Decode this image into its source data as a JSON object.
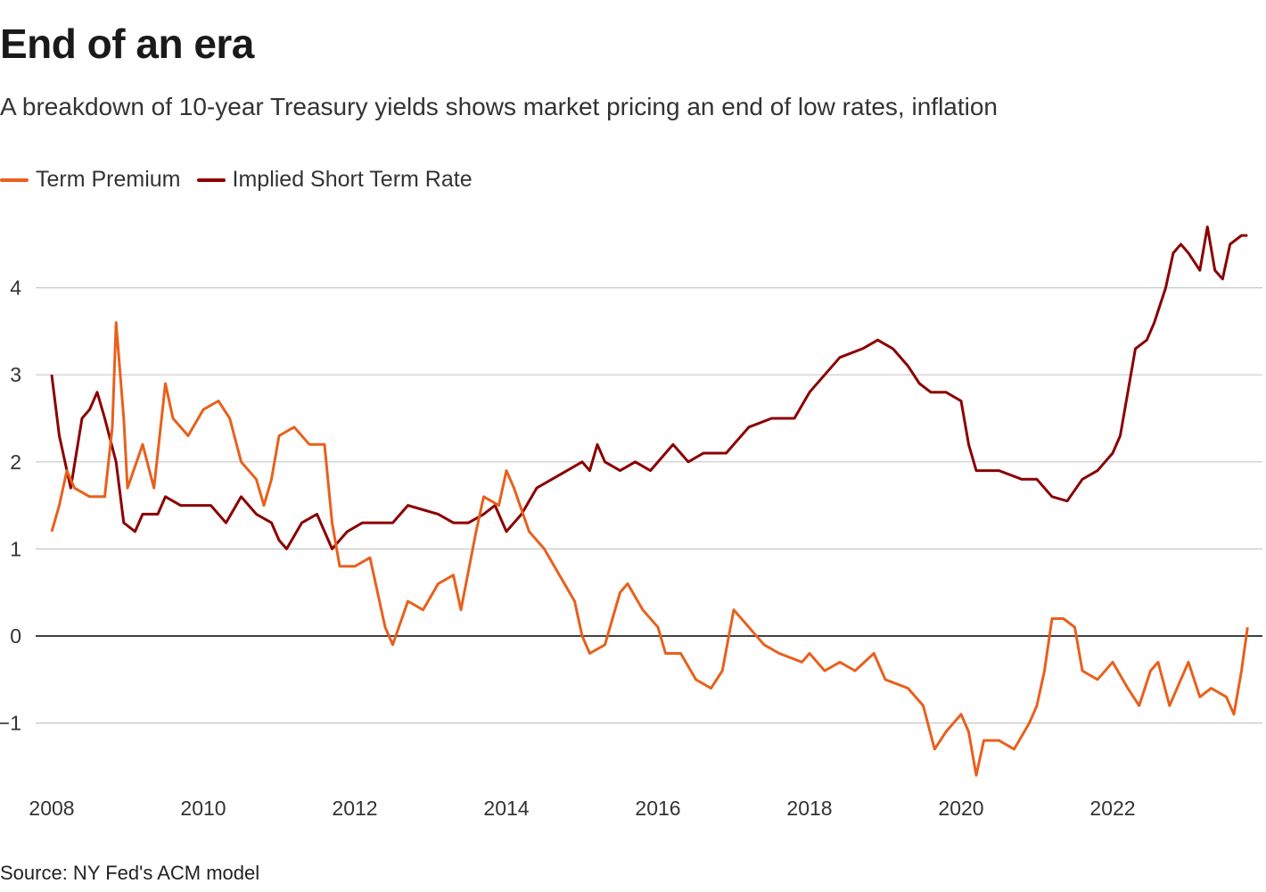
{
  "title": "End of an era",
  "subtitle": "A breakdown of 10-year Treasury yields shows market pricing an end of low rates, inflation",
  "source": "Source: NY Fed's ACM model",
  "chart_data": {
    "type": "line",
    "title": "End of an era",
    "xlabel": "",
    "ylabel": "",
    "xlim": [
      2007.95,
      2023.95
    ],
    "ylim": [
      -1.8,
      4.9
    ],
    "x_ticks": [
      "2008",
      "2010",
      "2012",
      "2014",
      "2016",
      "2018",
      "2020",
      "2022"
    ],
    "y_ticks": [
      "4",
      "3",
      "2",
      "1",
      "0",
      "−1"
    ],
    "grid": true,
    "legend_placement": "top-left",
    "series": [
      {
        "name": "Term Premium",
        "color": "#e8601c",
        "points": [
          [
            2008.0,
            1.2
          ],
          [
            2008.1,
            1.5
          ],
          [
            2008.2,
            1.9
          ],
          [
            2008.3,
            1.7
          ],
          [
            2008.5,
            1.6
          ],
          [
            2008.7,
            1.6
          ],
          [
            2008.8,
            2.4
          ],
          [
            2008.85,
            3.6
          ],
          [
            2008.95,
            2.5
          ],
          [
            2009.0,
            1.7
          ],
          [
            2009.2,
            2.2
          ],
          [
            2009.35,
            1.7
          ],
          [
            2009.5,
            2.9
          ],
          [
            2009.6,
            2.5
          ],
          [
            2009.8,
            2.3
          ],
          [
            2010.0,
            2.6
          ],
          [
            2010.2,
            2.7
          ],
          [
            2010.35,
            2.5
          ],
          [
            2010.5,
            2.0
          ],
          [
            2010.7,
            1.8
          ],
          [
            2010.8,
            1.5
          ],
          [
            2010.9,
            1.8
          ],
          [
            2011.0,
            2.3
          ],
          [
            2011.2,
            2.4
          ],
          [
            2011.4,
            2.2
          ],
          [
            2011.6,
            2.2
          ],
          [
            2011.7,
            1.3
          ],
          [
            2011.8,
            0.8
          ],
          [
            2012.0,
            0.8
          ],
          [
            2012.2,
            0.9
          ],
          [
            2012.4,
            0.1
          ],
          [
            2012.5,
            -0.1
          ],
          [
            2012.7,
            0.4
          ],
          [
            2012.9,
            0.3
          ],
          [
            2013.1,
            0.6
          ],
          [
            2013.3,
            0.7
          ],
          [
            2013.4,
            0.3
          ],
          [
            2013.6,
            1.2
          ],
          [
            2013.7,
            1.6
          ],
          [
            2013.9,
            1.5
          ],
          [
            2014.0,
            1.9
          ],
          [
            2014.1,
            1.7
          ],
          [
            2014.3,
            1.2
          ],
          [
            2014.5,
            1.0
          ],
          [
            2014.7,
            0.7
          ],
          [
            2014.9,
            0.4
          ],
          [
            2015.0,
            0.0
          ],
          [
            2015.1,
            -0.2
          ],
          [
            2015.3,
            -0.1
          ],
          [
            2015.5,
            0.5
          ],
          [
            2015.6,
            0.6
          ],
          [
            2015.8,
            0.3
          ],
          [
            2016.0,
            0.1
          ],
          [
            2016.1,
            -0.2
          ],
          [
            2016.3,
            -0.2
          ],
          [
            2016.5,
            -0.5
          ],
          [
            2016.7,
            -0.6
          ],
          [
            2016.85,
            -0.4
          ],
          [
            2017.0,
            0.3
          ],
          [
            2017.2,
            0.1
          ],
          [
            2017.4,
            -0.1
          ],
          [
            2017.6,
            -0.2
          ],
          [
            2017.9,
            -0.3
          ],
          [
            2018.0,
            -0.2
          ],
          [
            2018.2,
            -0.4
          ],
          [
            2018.4,
            -0.3
          ],
          [
            2018.6,
            -0.4
          ],
          [
            2018.85,
            -0.2
          ],
          [
            2019.0,
            -0.5
          ],
          [
            2019.3,
            -0.6
          ],
          [
            2019.5,
            -0.8
          ],
          [
            2019.65,
            -1.3
          ],
          [
            2019.8,
            -1.1
          ],
          [
            2020.0,
            -0.9
          ],
          [
            2020.1,
            -1.1
          ],
          [
            2020.2,
            -1.6
          ],
          [
            2020.3,
            -1.2
          ],
          [
            2020.5,
            -1.2
          ],
          [
            2020.7,
            -1.3
          ],
          [
            2020.9,
            -1.0
          ],
          [
            2021.0,
            -0.8
          ],
          [
            2021.1,
            -0.4
          ],
          [
            2021.2,
            0.2
          ],
          [
            2021.35,
            0.2
          ],
          [
            2021.5,
            0.1
          ],
          [
            2021.6,
            -0.4
          ],
          [
            2021.8,
            -0.5
          ],
          [
            2022.0,
            -0.3
          ],
          [
            2022.2,
            -0.6
          ],
          [
            2022.35,
            -0.8
          ],
          [
            2022.5,
            -0.4
          ],
          [
            2022.6,
            -0.3
          ],
          [
            2022.75,
            -0.8
          ],
          [
            2022.9,
            -0.5
          ],
          [
            2023.0,
            -0.3
          ],
          [
            2023.15,
            -0.7
          ],
          [
            2023.3,
            -0.6
          ],
          [
            2023.5,
            -0.7
          ],
          [
            2023.6,
            -0.9
          ],
          [
            2023.7,
            -0.4
          ],
          [
            2023.78,
            0.1
          ]
        ]
      },
      {
        "name": "Implied Short Term Rate",
        "color": "#8b0000",
        "points": [
          [
            2008.0,
            3.0
          ],
          [
            2008.1,
            2.3
          ],
          [
            2008.25,
            1.7
          ],
          [
            2008.4,
            2.5
          ],
          [
            2008.5,
            2.6
          ],
          [
            2008.6,
            2.8
          ],
          [
            2008.7,
            2.5
          ],
          [
            2008.85,
            2.0
          ],
          [
            2008.95,
            1.3
          ],
          [
            2009.1,
            1.2
          ],
          [
            2009.2,
            1.4
          ],
          [
            2009.4,
            1.4
          ],
          [
            2009.5,
            1.6
          ],
          [
            2009.7,
            1.5
          ],
          [
            2009.9,
            1.5
          ],
          [
            2010.1,
            1.5
          ],
          [
            2010.3,
            1.3
          ],
          [
            2010.5,
            1.6
          ],
          [
            2010.7,
            1.4
          ],
          [
            2010.9,
            1.3
          ],
          [
            2011.0,
            1.1
          ],
          [
            2011.1,
            1.0
          ],
          [
            2011.3,
            1.3
          ],
          [
            2011.5,
            1.4
          ],
          [
            2011.7,
            1.0
          ],
          [
            2011.9,
            1.2
          ],
          [
            2012.1,
            1.3
          ],
          [
            2012.3,
            1.3
          ],
          [
            2012.5,
            1.3
          ],
          [
            2012.7,
            1.5
          ],
          [
            2012.9,
            1.45
          ],
          [
            2013.1,
            1.4
          ],
          [
            2013.3,
            1.3
          ],
          [
            2013.5,
            1.3
          ],
          [
            2013.7,
            1.4
          ],
          [
            2013.85,
            1.5
          ],
          [
            2014.0,
            1.2
          ],
          [
            2014.2,
            1.4
          ],
          [
            2014.4,
            1.7
          ],
          [
            2014.6,
            1.8
          ],
          [
            2014.8,
            1.9
          ],
          [
            2015.0,
            2.0
          ],
          [
            2015.1,
            1.9
          ],
          [
            2015.2,
            2.2
          ],
          [
            2015.3,
            2.0
          ],
          [
            2015.5,
            1.9
          ],
          [
            2015.7,
            2.0
          ],
          [
            2015.9,
            1.9
          ],
          [
            2016.1,
            2.1
          ],
          [
            2016.2,
            2.2
          ],
          [
            2016.4,
            2.0
          ],
          [
            2016.6,
            2.1
          ],
          [
            2016.9,
            2.1
          ],
          [
            2017.0,
            2.2
          ],
          [
            2017.2,
            2.4
          ],
          [
            2017.5,
            2.5
          ],
          [
            2017.8,
            2.5
          ],
          [
            2018.0,
            2.8
          ],
          [
            2018.2,
            3.0
          ],
          [
            2018.4,
            3.2
          ],
          [
            2018.7,
            3.3
          ],
          [
            2018.9,
            3.4
          ],
          [
            2019.1,
            3.3
          ],
          [
            2019.3,
            3.1
          ],
          [
            2019.45,
            2.9
          ],
          [
            2019.6,
            2.8
          ],
          [
            2019.8,
            2.8
          ],
          [
            2020.0,
            2.7
          ],
          [
            2020.1,
            2.2
          ],
          [
            2020.2,
            1.9
          ],
          [
            2020.5,
            1.9
          ],
          [
            2020.8,
            1.8
          ],
          [
            2021.0,
            1.8
          ],
          [
            2021.2,
            1.6
          ],
          [
            2021.4,
            1.55
          ],
          [
            2021.6,
            1.8
          ],
          [
            2021.8,
            1.9
          ],
          [
            2021.9,
            2.0
          ],
          [
            2022.0,
            2.1
          ],
          [
            2022.1,
            2.3
          ],
          [
            2022.2,
            2.8
          ],
          [
            2022.3,
            3.3
          ],
          [
            2022.45,
            3.4
          ],
          [
            2022.55,
            3.6
          ],
          [
            2022.7,
            4.0
          ],
          [
            2022.8,
            4.4
          ],
          [
            2022.9,
            4.5
          ],
          [
            2023.0,
            4.4
          ],
          [
            2023.15,
            4.2
          ],
          [
            2023.25,
            4.7
          ],
          [
            2023.35,
            4.2
          ],
          [
            2023.45,
            4.1
          ],
          [
            2023.55,
            4.5
          ],
          [
            2023.7,
            4.6
          ],
          [
            2023.78,
            4.6
          ]
        ]
      }
    ]
  }
}
